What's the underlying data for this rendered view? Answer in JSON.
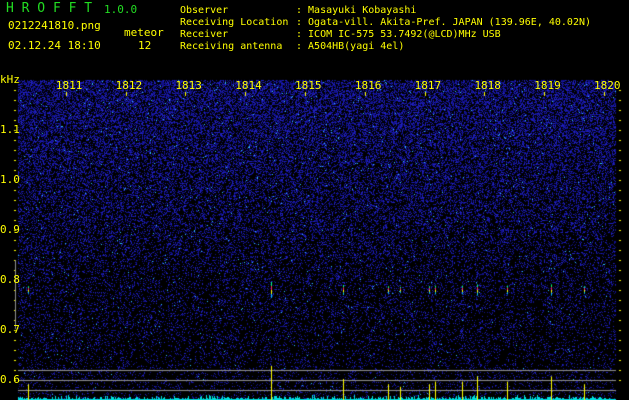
{
  "header": {
    "app_title": "H R O F F T",
    "version": "1.0.0",
    "filename": "0212241810.png",
    "datetime": "02.12.24 18:10",
    "meteor_label": "meteor",
    "meteor_count": "12",
    "info": [
      {
        "label": "Observer",
        "value": ": Masayuki Kobayashi"
      },
      {
        "label": "Receiving Location",
        "value": ": Ogata-vill. Akita-Pref. JAPAN (139.96E, 40.02N)"
      },
      {
        "label": "Receiver",
        "value": ": ICOM IC-575 53.7492(@LCD)MHz USB"
      },
      {
        "label": "Receiving antenna",
        "value": ": A504HB(yagi 4el)"
      }
    ]
  },
  "colors": {
    "text": "#ffff00",
    "title": "#22dd22",
    "background_noise": "#1a1aa0",
    "level_bars": "#00e0e0",
    "echo_bars": "#ffff00"
  },
  "chart_data": {
    "type": "heatmap",
    "ylabel": "kHz",
    "x_ticks": [
      "1811",
      "1812",
      "1813",
      "1814",
      "1815",
      "1816",
      "1817",
      "1818",
      "1819",
      "1820"
    ],
    "y_ticks": [
      "1.1",
      "1.0",
      "0.9",
      "0.8",
      "0.7",
      "0.6"
    ],
    "xlim": [
      1810.2,
      1820.2
    ],
    "ylim": [
      0.56,
      1.2
    ],
    "echoes": [
      {
        "time": 1810.37,
        "freq_khz": 0.78,
        "strength": 0.3
      },
      {
        "time": 1814.43,
        "freq_khz": 0.78,
        "strength": 1.0
      },
      {
        "time": 1815.63,
        "freq_khz": 0.78,
        "strength": 0.5
      },
      {
        "time": 1816.38,
        "freq_khz": 0.78,
        "strength": 0.3
      },
      {
        "time": 1816.58,
        "freq_khz": 0.78,
        "strength": 0.2
      },
      {
        "time": 1817.08,
        "freq_khz": 0.78,
        "strength": 0.3
      },
      {
        "time": 1817.17,
        "freq_khz": 0.78,
        "strength": 0.4
      },
      {
        "time": 1817.63,
        "freq_khz": 0.78,
        "strength": 0.4
      },
      {
        "time": 1817.87,
        "freq_khz": 0.78,
        "strength": 0.6
      },
      {
        "time": 1818.38,
        "freq_khz": 0.78,
        "strength": 0.4
      },
      {
        "time": 1819.12,
        "freq_khz": 0.78,
        "strength": 0.6
      },
      {
        "time": 1819.67,
        "freq_khz": 0.78,
        "strength": 0.3
      }
    ]
  }
}
